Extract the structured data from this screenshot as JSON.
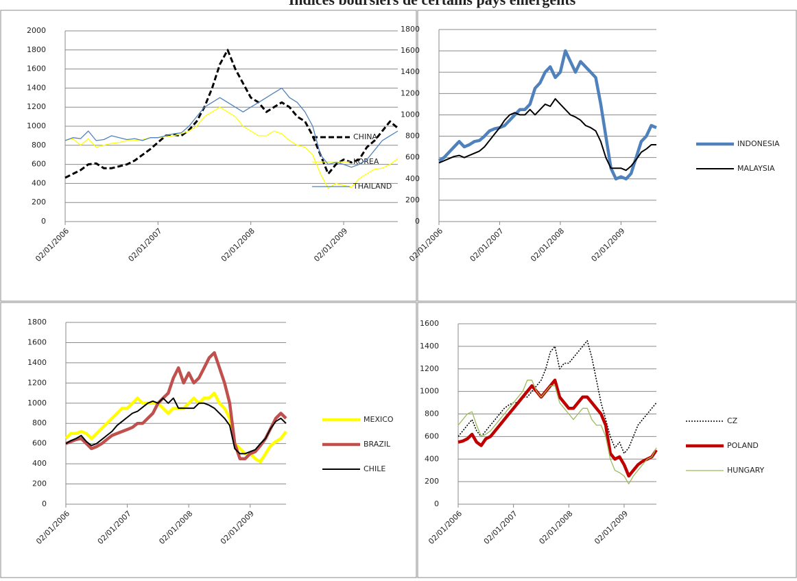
{
  "title": "Indices boursiers de certains pays émergents",
  "chart_data": [
    {
      "type": "line",
      "grid": true,
      "x": [
        "2006-01",
        "2006-02",
        "2006-03",
        "2006-04",
        "2006-05",
        "2006-06",
        "2006-07",
        "2006-08",
        "2006-09",
        "2006-10",
        "2006-11",
        "2006-12",
        "2007-01",
        "2007-02",
        "2007-03",
        "2007-04",
        "2007-05",
        "2007-06",
        "2007-07",
        "2007-08",
        "2007-09",
        "2007-10",
        "2007-11",
        "2007-12",
        "2008-01",
        "2008-02",
        "2008-03",
        "2008-04",
        "2008-05",
        "2008-06",
        "2008-07",
        "2008-08",
        "2008-09",
        "2008-10",
        "2008-11",
        "2008-12",
        "2009-01",
        "2009-02",
        "2009-03",
        "2009-04",
        "2009-05",
        "2009-06",
        "2009-07",
        "2009-08"
      ],
      "xlim": [
        "2006-01",
        "2009-08"
      ],
      "xticks": [
        {
          "value": "2006-01",
          "label": "02/01/2006"
        },
        {
          "value": "2007-01",
          "label": "02/01/2007"
        },
        {
          "value": "2008-01",
          "label": "02/01/2008"
        },
        {
          "value": "2009-01",
          "label": "02/01/2009"
        }
      ],
      "ylim": [
        0,
        2000
      ],
      "yticks": [
        0,
        200,
        400,
        600,
        800,
        1000,
        1200,
        1400,
        1600,
        1800,
        2000
      ],
      "series": [
        {
          "name": "CHINA",
          "color": "#000000",
          "line_style": "thick-dashed",
          "values": [
            460,
            500,
            540,
            600,
            610,
            560,
            560,
            580,
            600,
            640,
            700,
            760,
            830,
            900,
            910,
            900,
            960,
            1050,
            1200,
            1400,
            1650,
            1800,
            1600,
            1450,
            1300,
            1250,
            1150,
            1200,
            1250,
            1200,
            1100,
            1050,
            900,
            700,
            500,
            600,
            650,
            620,
            650,
            780,
            850,
            950,
            1050,
            980
          ]
        },
        {
          "name": "KOREA",
          "color": "#ffff00",
          "line_style": "thin",
          "values": [
            850,
            870,
            800,
            870,
            780,
            800,
            820,
            830,
            850,
            850,
            860,
            880,
            880,
            890,
            900,
            920,
            950,
            1000,
            1100,
            1150,
            1200,
            1150,
            1100,
            1000,
            950,
            900,
            900,
            950,
            920,
            850,
            800,
            780,
            700,
            500,
            350,
            400,
            380,
            360,
            450,
            500,
            550,
            560,
            600,
            660
          ]
        },
        {
          "name": "THAILAND",
          "color": "#4f81bd",
          "line_style": "thin",
          "values": [
            850,
            880,
            870,
            950,
            850,
            860,
            900,
            880,
            860,
            870,
            850,
            880,
            880,
            900,
            920,
            930,
            1000,
            1100,
            1200,
            1250,
            1300,
            1250,
            1200,
            1150,
            1200,
            1250,
            1300,
            1350,
            1400,
            1300,
            1250,
            1150,
            1000,
            700,
            600,
            620,
            600,
            570,
            600,
            650,
            750,
            850,
            900,
            950
          ]
        }
      ]
    },
    {
      "type": "line",
      "grid": true,
      "x": [
        "2006-01",
        "2006-02",
        "2006-03",
        "2006-04",
        "2006-05",
        "2006-06",
        "2006-07",
        "2006-08",
        "2006-09",
        "2006-10",
        "2006-11",
        "2006-12",
        "2007-01",
        "2007-02",
        "2007-03",
        "2007-04",
        "2007-05",
        "2007-06",
        "2007-07",
        "2007-08",
        "2007-09",
        "2007-10",
        "2007-11",
        "2007-12",
        "2008-01",
        "2008-02",
        "2008-03",
        "2008-04",
        "2008-05",
        "2008-06",
        "2008-07",
        "2008-08",
        "2008-09",
        "2008-10",
        "2008-11",
        "2008-12",
        "2009-01",
        "2009-02",
        "2009-03",
        "2009-04",
        "2009-05",
        "2009-06",
        "2009-07",
        "2009-08"
      ],
      "xlim": [
        "2006-01",
        "2009-08"
      ],
      "xticks": [
        {
          "value": "2006-01",
          "label": "02/01/2006"
        },
        {
          "value": "2007-01",
          "label": "02/01/2007"
        },
        {
          "value": "2008-01",
          "label": "02/01/2008"
        },
        {
          "value": "2009-01",
          "label": "02/01/2009"
        }
      ],
      "ylim": [
        0,
        1800
      ],
      "yticks": [
        0,
        200,
        400,
        600,
        800,
        1000,
        1200,
        1400,
        1600,
        1800
      ],
      "series": [
        {
          "name": "INDONESIA",
          "color": "#4f81bd",
          "line_style": "heavy",
          "values": [
            570,
            600,
            650,
            700,
            750,
            700,
            720,
            750,
            760,
            800,
            850,
            870,
            880,
            900,
            950,
            1000,
            1050,
            1050,
            1100,
            1250,
            1300,
            1400,
            1450,
            1350,
            1400,
            1600,
            1500,
            1400,
            1500,
            1450,
            1400,
            1350,
            1100,
            800,
            500,
            400,
            420,
            400,
            450,
            600,
            750,
            800,
            900,
            880
          ]
        },
        {
          "name": "MALAYSIA",
          "color": "#000000",
          "line_style": "medium",
          "values": [
            550,
            570,
            590,
            610,
            620,
            600,
            620,
            640,
            660,
            700,
            760,
            820,
            880,
            950,
            1000,
            1020,
            1000,
            1000,
            1050,
            1000,
            1050,
            1100,
            1080,
            1150,
            1100,
            1050,
            1000,
            980,
            950,
            900,
            880,
            850,
            750,
            600,
            500,
            500,
            500,
            480,
            520,
            580,
            650,
            680,
            720,
            720
          ]
        }
      ]
    },
    {
      "type": "line",
      "grid": true,
      "x": [
        "2006-01",
        "2006-02",
        "2006-03",
        "2006-04",
        "2006-05",
        "2006-06",
        "2006-07",
        "2006-08",
        "2006-09",
        "2006-10",
        "2006-11",
        "2006-12",
        "2007-01",
        "2007-02",
        "2007-03",
        "2007-04",
        "2007-05",
        "2007-06",
        "2007-07",
        "2007-08",
        "2007-09",
        "2007-10",
        "2007-11",
        "2007-12",
        "2008-01",
        "2008-02",
        "2008-03",
        "2008-04",
        "2008-05",
        "2008-06",
        "2008-07",
        "2008-08",
        "2008-09",
        "2008-10",
        "2008-11",
        "2008-12",
        "2009-01",
        "2009-02",
        "2009-03",
        "2009-04",
        "2009-05",
        "2009-06",
        "2009-07",
        "2009-08"
      ],
      "xlim": [
        "2006-01",
        "2009-08"
      ],
      "xticks": [
        {
          "value": "2006-01",
          "label": "02/01/2006"
        },
        {
          "value": "2007-01",
          "label": "02/01/2007"
        },
        {
          "value": "2008-01",
          "label": "02/01/2008"
        },
        {
          "value": "2009-01",
          "label": "02/01/2009"
        }
      ],
      "ylim": [
        0,
        1800
      ],
      "yticks": [
        0,
        200,
        400,
        600,
        800,
        1000,
        1200,
        1400,
        1600,
        1800
      ],
      "series": [
        {
          "name": "MEXICO",
          "color": "#ffff00",
          "line_style": "heavy",
          "values": [
            650,
            700,
            700,
            720,
            700,
            650,
            700,
            750,
            800,
            850,
            900,
            950,
            950,
            1000,
            1050,
            1000,
            1000,
            1000,
            1000,
            950,
            900,
            950,
            950,
            950,
            1000,
            1050,
            1000,
            1050,
            1050,
            1100,
            1000,
            950,
            850,
            600,
            550,
            500,
            500,
            450,
            420,
            500,
            580,
            620,
            650,
            720
          ]
        },
        {
          "name": "BRAZIL",
          "color": "#c0504d",
          "line_style": "heavy",
          "values": [
            600,
            620,
            640,
            650,
            600,
            550,
            570,
            600,
            640,
            680,
            700,
            720,
            740,
            760,
            800,
            800,
            850,
            900,
            1000,
            1050,
            1100,
            1250,
            1350,
            1200,
            1300,
            1200,
            1250,
            1350,
            1450,
            1500,
            1350,
            1200,
            1000,
            600,
            450,
            450,
            500,
            520,
            580,
            650,
            750,
            850,
            900,
            850
          ]
        },
        {
          "name": "CHILE",
          "color": "#000000",
          "line_style": "medium",
          "values": [
            600,
            630,
            650,
            680,
            620,
            580,
            600,
            640,
            680,
            720,
            780,
            820,
            860,
            900,
            920,
            960,
            1000,
            1020,
            1000,
            1050,
            1000,
            1050,
            950,
            950,
            950,
            950,
            1000,
            1000,
            980,
            950,
            900,
            850,
            780,
            550,
            500,
            500,
            520,
            540,
            600,
            650,
            750,
            820,
            850,
            800
          ]
        }
      ]
    },
    {
      "type": "line",
      "grid": true,
      "x": [
        "2006-01",
        "2006-02",
        "2006-03",
        "2006-04",
        "2006-05",
        "2006-06",
        "2006-07",
        "2006-08",
        "2006-09",
        "2006-10",
        "2006-11",
        "2006-12",
        "2007-01",
        "2007-02",
        "2007-03",
        "2007-04",
        "2007-05",
        "2007-06",
        "2007-07",
        "2007-08",
        "2007-09",
        "2007-10",
        "2007-11",
        "2007-12",
        "2008-01",
        "2008-02",
        "2008-03",
        "2008-04",
        "2008-05",
        "2008-06",
        "2008-07",
        "2008-08",
        "2008-09",
        "2008-10",
        "2008-11",
        "2008-12",
        "2009-01",
        "2009-02",
        "2009-03",
        "2009-04",
        "2009-05",
        "2009-06",
        "2009-07",
        "2009-08"
      ],
      "xlim": [
        "2006-01",
        "2009-08"
      ],
      "xticks": [
        {
          "value": "2006-01",
          "label": "02/01/2006"
        },
        {
          "value": "2007-01",
          "label": "02/01/2007"
        },
        {
          "value": "2008-01",
          "label": "02/01/2008"
        },
        {
          "value": "2009-01",
          "label": "02/01/2009"
        }
      ],
      "ylim": [
        0,
        1600
      ],
      "yticks": [
        0,
        200,
        400,
        600,
        800,
        1000,
        1200,
        1400,
        1600
      ],
      "series": [
        {
          "name": "CZ",
          "color": "#000000",
          "line_style": "dotted",
          "values": [
            600,
            650,
            700,
            750,
            650,
            600,
            650,
            700,
            750,
            800,
            850,
            880,
            900,
            900,
            950,
            950,
            1000,
            1050,
            1100,
            1200,
            1350,
            1400,
            1200,
            1250,
            1250,
            1300,
            1350,
            1400,
            1450,
            1300,
            1100,
            900,
            750,
            600,
            500,
            550,
            450,
            500,
            600,
            700,
            750,
            800,
            850,
            900
          ]
        },
        {
          "name": "POLAND",
          "color": "#c00000",
          "line_style": "heavy",
          "values": [
            550,
            560,
            580,
            620,
            550,
            520,
            580,
            600,
            650,
            700,
            750,
            800,
            850,
            900,
            950,
            1000,
            1050,
            1000,
            950,
            1000,
            1050,
            1100,
            950,
            900,
            850,
            850,
            900,
            950,
            950,
            900,
            850,
            800,
            700,
            450,
            400,
            420,
            350,
            250,
            300,
            350,
            380,
            400,
            420,
            480
          ]
        },
        {
          "name": "HUNGARY",
          "color": "#9bbb59",
          "line_style": "thin",
          "values": [
            700,
            750,
            800,
            820,
            700,
            600,
            620,
            650,
            700,
            750,
            800,
            850,
            900,
            950,
            1000,
            1100,
            1100,
            1000,
            950,
            1000,
            1050,
            1050,
            900,
            850,
            800,
            750,
            800,
            850,
            850,
            750,
            700,
            700,
            600,
            400,
            300,
            280,
            250,
            180,
            250,
            300,
            350,
            400,
            420,
            500
          ]
        }
      ]
    }
  ]
}
